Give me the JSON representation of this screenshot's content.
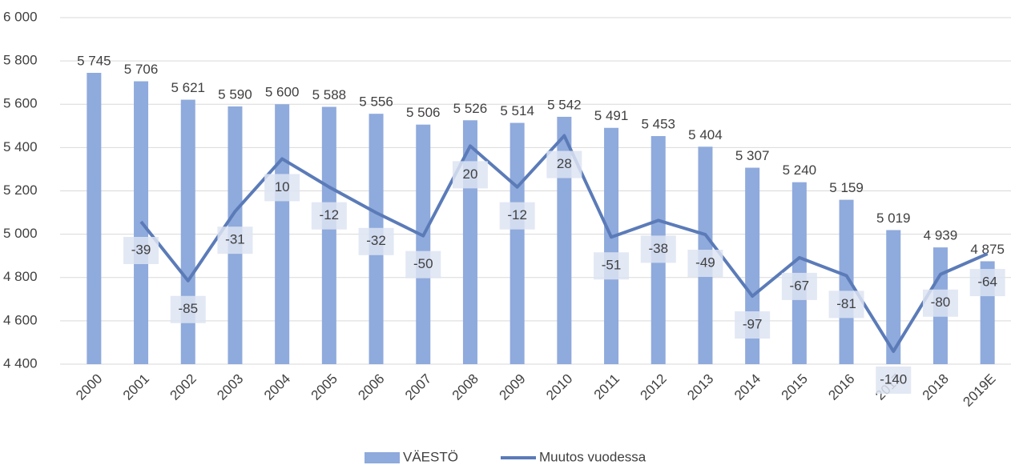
{
  "chart_data": {
    "type": "bar_line",
    "categories": [
      "2000",
      "2001",
      "2002",
      "2003",
      "2004",
      "2005",
      "2006",
      "2007",
      "2008",
      "2009",
      "2010",
      "2011",
      "2012",
      "2013",
      "2014",
      "2015",
      "2016",
      "2017",
      "2018",
      "2019E"
    ],
    "series": [
      {
        "name": "VÄESTÖ",
        "type": "bar",
        "color": "#8faadc",
        "values": [
          5745,
          5706,
          5621,
          5590,
          5600,
          5588,
          5556,
          5506,
          5526,
          5514,
          5542,
          5491,
          5453,
          5404,
          5307,
          5240,
          5159,
          5019,
          4939,
          4875
        ],
        "value_labels": [
          "5 745",
          "5 706",
          "5 621",
          "5 590",
          "5 600",
          "5 588",
          "5 556",
          "5 506",
          "5 526",
          "5 514",
          "5 542",
          "5 491",
          "5 453",
          "5 404",
          "5 307",
          "5 240",
          "5 159",
          "5 019",
          "4 939",
          "4 875"
        ]
      },
      {
        "name": "Muutos vuodessa",
        "type": "line",
        "axis": "y2",
        "color": "#5b7bb8",
        "values": [
          null,
          -39,
          -85,
          -31,
          10,
          -12,
          -32,
          -50,
          20,
          -12,
          28,
          -51,
          -38,
          -49,
          -97,
          -67,
          -81,
          -140,
          -80,
          -64
        ]
      }
    ],
    "ylim": [
      4400,
      6000
    ],
    "yticks": [
      {
        "value": 4400,
        "label": "4 400"
      },
      {
        "value": 4600,
        "label": "4 600"
      },
      {
        "value": 4800,
        "label": "4 800"
      },
      {
        "value": 5000,
        "label": "5 000"
      },
      {
        "value": 5200,
        "label": "5 200"
      },
      {
        "value": 5400,
        "label": "5 400"
      },
      {
        "value": 5600,
        "label": "5 600"
      },
      {
        "value": 5800,
        "label": "5 800"
      },
      {
        "value": 6000,
        "label": "6 000"
      }
    ],
    "y2lim": [
      -150,
      120
    ],
    "grid": true,
    "legend": "bottom"
  }
}
